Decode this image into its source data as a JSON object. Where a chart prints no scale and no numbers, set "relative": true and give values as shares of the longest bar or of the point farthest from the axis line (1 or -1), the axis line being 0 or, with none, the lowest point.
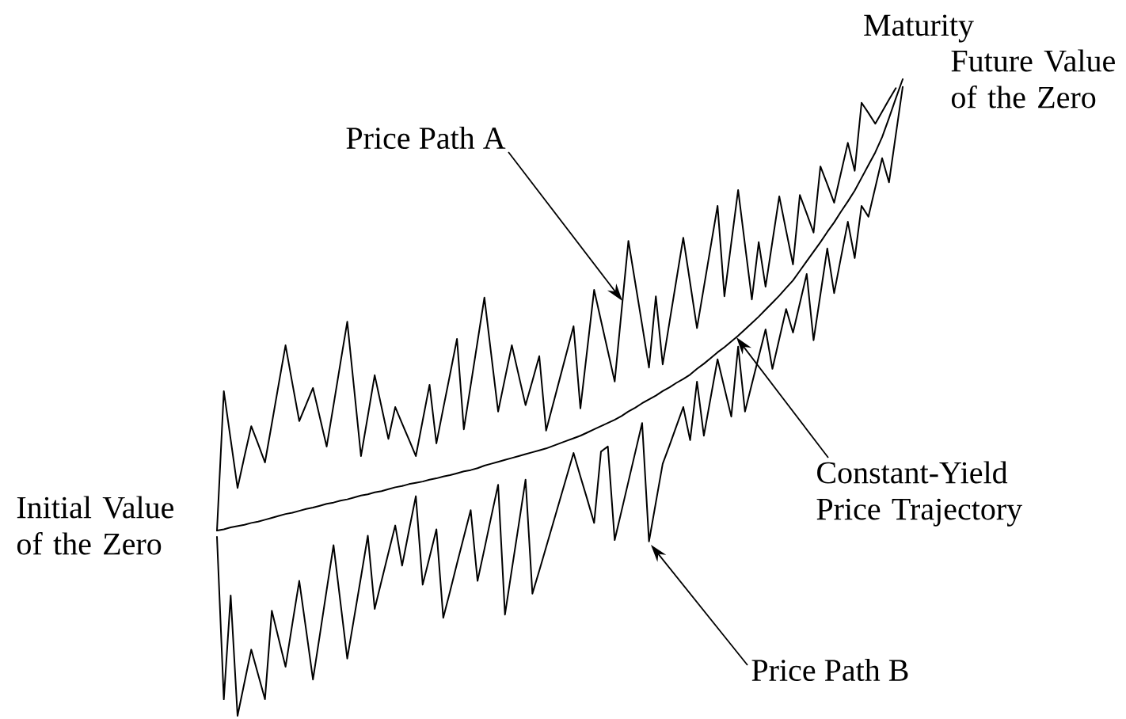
{
  "chart_data": {
    "type": "line",
    "relative": true,
    "marker": "none",
    "line_style": "solid",
    "annotations": [
      "Maturity",
      "Future Value of the Zero",
      "Price Path A",
      "Initial Value of the Zero",
      "Constant-Yield Price Trajectory",
      "Price Path B"
    ],
    "categories": [
      null,
      null,
      null,
      null,
      null,
      null,
      null,
      null,
      null,
      null,
      null,
      null,
      null,
      null,
      null,
      null,
      null,
      null,
      null,
      null,
      null,
      null,
      null,
      null,
      null,
      null,
      null,
      null,
      null,
      null,
      null,
      null,
      null,
      null,
      null,
      null,
      null,
      null,
      null,
      null,
      null,
      null,
      null,
      null,
      null,
      null,
      null,
      null,
      null,
      null,
      null,
      null,
      null,
      null,
      null,
      null,
      null,
      null,
      null,
      null,
      null,
      null,
      null,
      null,
      null,
      null,
      null,
      null,
      null,
      null,
      null,
      null,
      null,
      null,
      null,
      null,
      null,
      null,
      null,
      null,
      null,
      null,
      null,
      null,
      null,
      null,
      null,
      null,
      null,
      null,
      null,
      null,
      null,
      null,
      null,
      null,
      null,
      null,
      null,
      null,
      null
    ],
    "series": [
      {
        "color": "#000000",
        "values": [
          0.291,
          0.51,
          0.434,
          0.358,
          0.407,
          0.455,
          0.427,
          0.398,
          0.459,
          0.521,
          0.582,
          0.522,
          0.463,
          0.489,
          0.515,
          0.469,
          0.423,
          0.488,
          0.554,
          0.619,
          0.514,
          0.408,
          0.471,
          0.535,
          0.485,
          0.435,
          0.485,
          0.459,
          0.434,
          0.408,
          0.464,
          0.52,
          0.428,
          0.483,
          0.537,
          0.592,
          0.45,
          0.519,
          0.588,
          0.657,
          0.567,
          0.478,
          0.53,
          0.582,
          0.535,
          0.488,
          0.526,
          0.565,
          0.448,
          0.489,
          0.53,
          0.571,
          0.612,
          0.483,
          0.576,
          0.669,
          0.621,
          0.573,
          0.525,
          0.636,
          0.746,
          0.68,
          0.614,
          0.547,
          0.659,
          0.552,
          0.619,
          0.685,
          0.751,
          0.68,
          0.609,
          0.673,
          0.737,
          0.801,
          0.659,
          0.743,
          0.826,
          0.74,
          0.654,
          0.744,
          0.674,
          0.745,
          0.816,
          0.762,
          0.709,
          0.818,
          0.789,
          0.759,
          0.863,
          0.835,
          0.806,
          0.853,
          0.9,
          0.856,
          0.963,
          0.947,
          0.93,
          0.949,
          0.968,
          0.986,
          null
        ]
      },
      {
        "color": "#000000",
        "values": [
          0.291,
          0.293,
          0.296,
          0.298,
          0.3,
          0.303,
          0.305,
          0.308,
          0.311,
          0.314,
          0.317,
          0.319,
          0.322,
          0.325,
          0.327,
          0.33,
          0.333,
          0.335,
          0.338,
          0.34,
          0.343,
          0.346,
          0.348,
          0.351,
          0.353,
          0.356,
          0.359,
          0.361,
          0.364,
          0.366,
          0.368,
          0.371,
          0.373,
          0.376,
          0.378,
          0.381,
          0.384,
          0.386,
          0.389,
          0.393,
          0.396,
          0.399,
          0.402,
          0.405,
          0.408,
          0.411,
          0.414,
          0.417,
          0.42,
          0.424,
          0.428,
          0.432,
          0.436,
          0.44,
          0.445,
          0.45,
          0.455,
          0.46,
          0.465,
          0.471,
          0.478,
          0.484,
          0.491,
          0.497,
          0.503,
          0.51,
          0.516,
          0.523,
          0.529,
          0.536,
          0.545,
          0.553,
          0.562,
          0.571,
          0.579,
          0.588,
          0.597,
          0.607,
          0.617,
          0.627,
          0.638,
          0.649,
          0.66,
          0.672,
          0.684,
          0.699,
          0.714,
          0.729,
          0.744,
          0.76,
          0.775,
          0.792,
          0.808,
          0.825,
          0.845,
          0.865,
          0.885,
          0.909,
          0.939,
          0.97,
          1
        ]
      },
      {
        "color": "#000000",
        "values": [
          0.281,
          0.026,
          0.189,
          0,
          0.052,
          0.104,
          0.065,
          0.026,
          0.165,
          0.121,
          0.077,
          0.145,
          0.212,
          0.135,
          0.057,
          0.127,
          0.198,
          0.268,
          0.179,
          0.09,
          0.154,
          0.218,
          0.283,
          0.168,
          0.212,
          0.256,
          0.299,
          0.236,
          0.291,
          0.345,
          0.206,
          0.249,
          0.293,
          0.154,
          0.196,
          0.239,
          0.281,
          0.323,
          0.212,
          0.262,
          0.313,
          0.363,
          0.159,
          0.23,
          0.3,
          0.371,
          0.192,
          0.228,
          0.265,
          0.302,
          0.339,
          0.376,
          0.413,
          0.376,
          0.34,
          0.303,
          0.415,
          0.423,
          0.276,
          0.322,
          0.368,
          0.414,
          0.46,
          0.274,
          0.335,
          0.396,
          0.425,
          0.455,
          0.485,
          0.433,
          0.525,
          0.44,
          0.5,
          0.56,
          0.515,
          0.47,
          0.58,
          0.478,
          0.521,
          0.564,
          0.607,
          0.545,
          0.592,
          0.639,
          0.602,
          0.648,
          0.694,
          0.59,
          0.662,
          0.734,
          0.664,
          0.72,
          0.776,
          0.719,
          0.801,
          0.784,
          0.83,
          0.876,
          0.838,
          0.913,
          0.988
        ]
      }
    ]
  }
}
